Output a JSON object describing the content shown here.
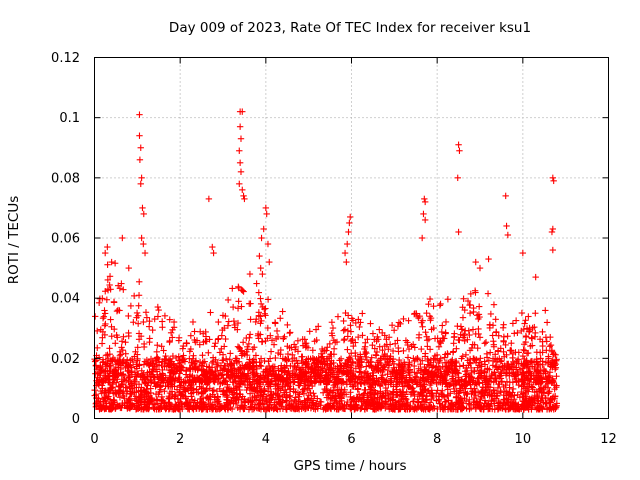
{
  "chart_data": {
    "type": "scatter",
    "title": "Day 009 of 2023, Rate Of TEC Index for receiver ksu1",
    "xlabel": "GPS time / hours",
    "ylabel": "ROTI / TECUs",
    "xlim": [
      0,
      12
    ],
    "ylim": [
      0,
      0.12
    ],
    "x_ticks": [
      "0",
      "2",
      "4",
      "6",
      "8",
      "10",
      "12"
    ],
    "y_ticks": [
      "0",
      "0.02",
      "0.04",
      "0.06",
      "0.08",
      "0.1",
      "0.12"
    ],
    "grid": true,
    "marker": "+",
    "color": "#ff0000",
    "x_range_of_data": [
      0,
      10.8
    ],
    "baseline_range": [
      0.003,
      0.02
    ],
    "series": [
      {
        "name": "ROTI",
        "points": [
          [
            1.05,
            0.101
          ],
          [
            1.05,
            0.094
          ],
          [
            1.08,
            0.09
          ],
          [
            1.06,
            0.086
          ],
          [
            1.1,
            0.08
          ],
          [
            1.08,
            0.078
          ],
          [
            1.12,
            0.07
          ],
          [
            1.15,
            0.068
          ],
          [
            1.1,
            0.06
          ],
          [
            1.14,
            0.058
          ],
          [
            1.18,
            0.055
          ],
          [
            3.4,
            0.102
          ],
          [
            3.45,
            0.102
          ],
          [
            3.4,
            0.097
          ],
          [
            3.42,
            0.093
          ],
          [
            3.38,
            0.089
          ],
          [
            3.4,
            0.085
          ],
          [
            3.42,
            0.082
          ],
          [
            3.38,
            0.078
          ],
          [
            3.45,
            0.076
          ],
          [
            3.5,
            0.073
          ],
          [
            3.48,
            0.074
          ],
          [
            2.67,
            0.073
          ],
          [
            2.75,
            0.057
          ],
          [
            2.78,
            0.055
          ],
          [
            4.0,
            0.07
          ],
          [
            4.02,
            0.068
          ],
          [
            3.95,
            0.063
          ],
          [
            3.9,
            0.06
          ],
          [
            4.05,
            0.058
          ],
          [
            3.85,
            0.054
          ],
          [
            3.88,
            0.05
          ],
          [
            3.92,
            0.048
          ],
          [
            4.08,
            0.052
          ],
          [
            5.97,
            0.067
          ],
          [
            5.95,
            0.065
          ],
          [
            5.93,
            0.062
          ],
          [
            5.9,
            0.058
          ],
          [
            5.85,
            0.055
          ],
          [
            5.88,
            0.052
          ],
          [
            7.7,
            0.073
          ],
          [
            7.72,
            0.072
          ],
          [
            7.68,
            0.068
          ],
          [
            7.72,
            0.066
          ],
          [
            7.65,
            0.06
          ],
          [
            8.5,
            0.091
          ],
          [
            8.52,
            0.089
          ],
          [
            8.48,
            0.08
          ],
          [
            8.5,
            0.062
          ],
          [
            9.6,
            0.074
          ],
          [
            9.62,
            0.064
          ],
          [
            9.65,
            0.061
          ],
          [
            10.7,
            0.08
          ],
          [
            10.72,
            0.079
          ],
          [
            10.7,
            0.063
          ],
          [
            10.68,
            0.062
          ],
          [
            10.7,
            0.056
          ],
          [
            0.3,
            0.057
          ],
          [
            0.25,
            0.055
          ],
          [
            0.65,
            0.06
          ],
          [
            0.4,
            0.052
          ],
          [
            0.8,
            0.05
          ],
          [
            9.2,
            0.053
          ],
          [
            8.9,
            0.052
          ],
          [
            9.0,
            0.05
          ],
          [
            10.0,
            0.055
          ],
          [
            10.3,
            0.047
          ]
        ]
      }
    ]
  }
}
